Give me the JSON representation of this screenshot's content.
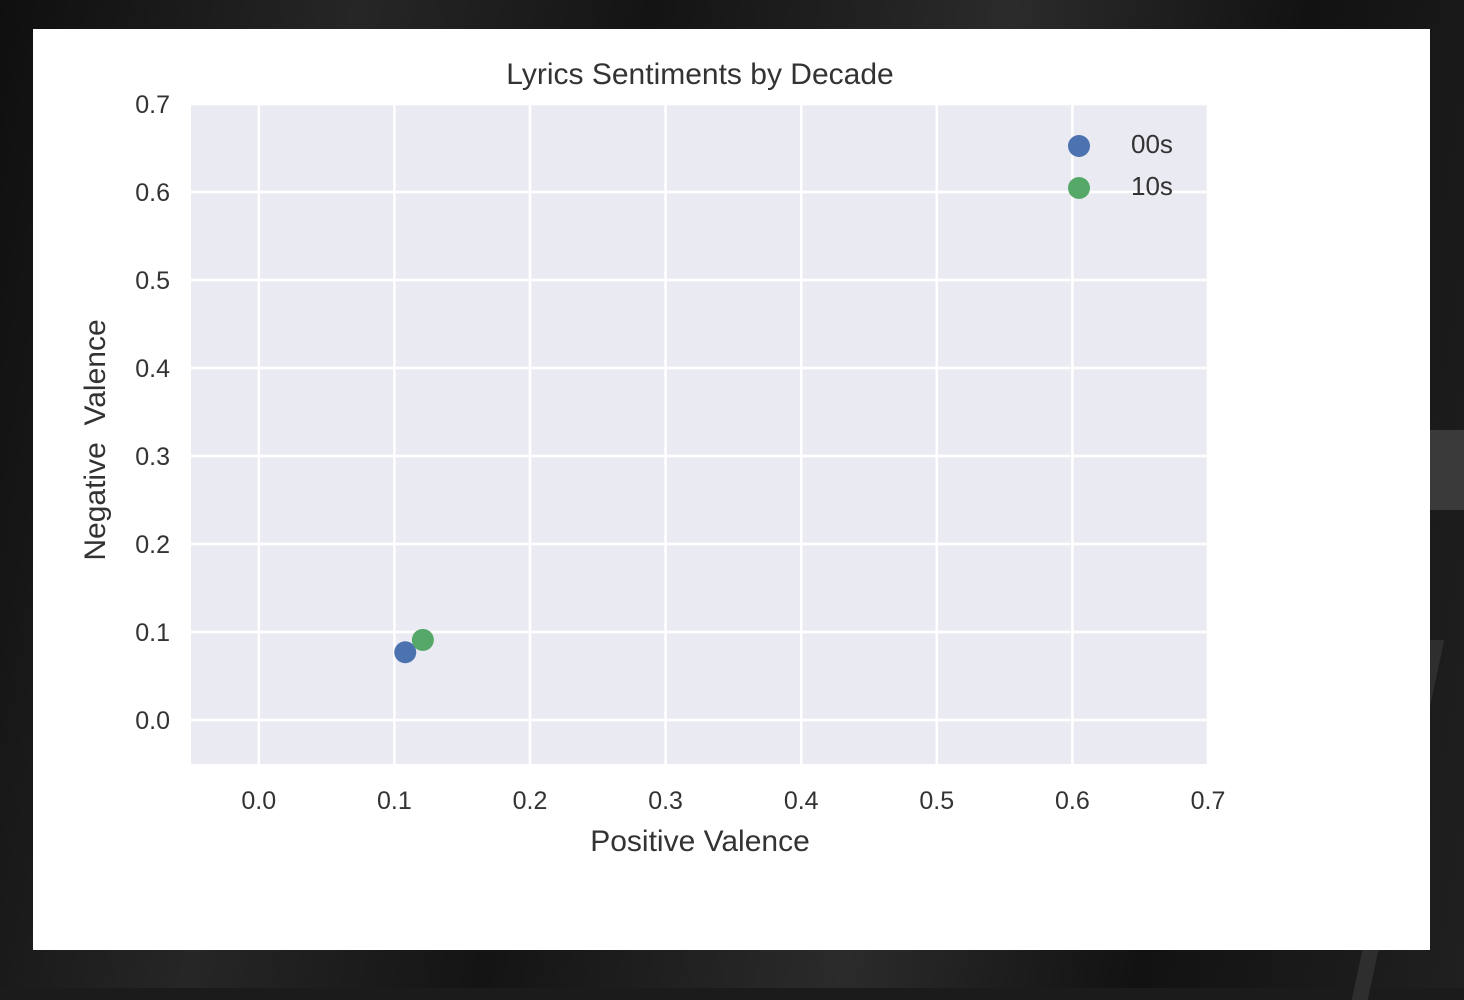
{
  "chart_data": {
    "type": "scatter",
    "title": "Lyrics Sentiments by Decade",
    "xlabel": "Positive Valence",
    "ylabel": "Negative  Valence",
    "xlim": [
      -0.05,
      0.7
    ],
    "ylim": [
      -0.05,
      0.7
    ],
    "x_ticks": [
      "0.0",
      "0.1",
      "0.2",
      "0.3",
      "0.4",
      "0.5",
      "0.6",
      "0.7"
    ],
    "y_ticks": [
      "0.0",
      "0.1",
      "0.2",
      "0.3",
      "0.4",
      "0.5",
      "0.6",
      "0.7"
    ],
    "grid": true,
    "legend_position": "top-right",
    "series": [
      {
        "name": "00s",
        "color": "#4c72b0",
        "x": [
          0.108
        ],
        "y": [
          0.077
        ]
      },
      {
        "name": "10s",
        "color": "#55a868",
        "x": [
          0.121
        ],
        "y": [
          0.091
        ]
      }
    ]
  },
  "colors": {
    "plot_background": "#eaeaf2",
    "gridline": "#ffffff",
    "card_background": "#ffffff"
  }
}
